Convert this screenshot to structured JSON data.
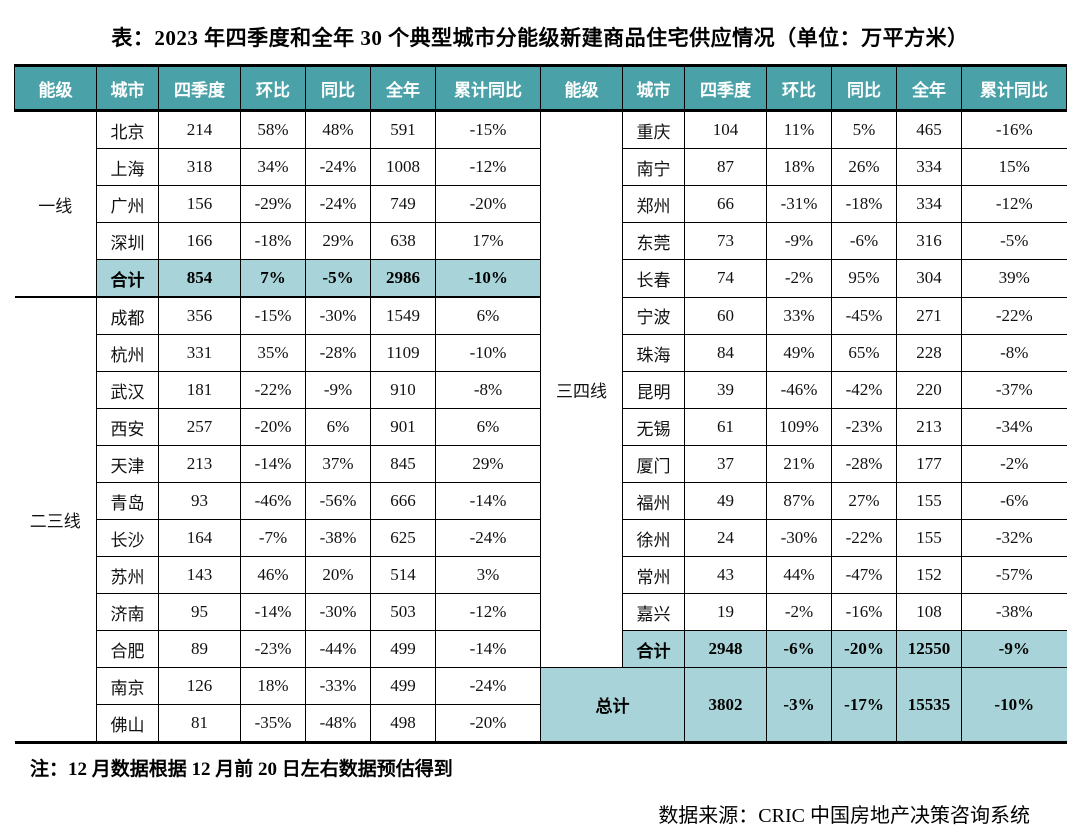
{
  "title": "表：2023 年四季度和全年 30 个典型城市分能级新建商品住宅供应情况（单位：万平方米）",
  "note": "注：12 月数据根据 12 月前 20 日左右数据预估得到",
  "source": "数据来源：CRIC 中国房地产决策咨询系统",
  "colors": {
    "header_bg": "#4aa2a8",
    "header_text": "#ffffff",
    "highlight_bg": "#a8d3d8",
    "border": "#000000"
  },
  "chart_data": {
    "type": "table",
    "title": "表：2023 年四季度和全年 30 个典型城市分能级新建商品住宅供应情况（单位：万平方米）",
    "columns": [
      "能级",
      "城市",
      "四季度",
      "环比",
      "同比",
      "全年",
      "累计同比"
    ],
    "left_groups": [
      {
        "tier": "一线",
        "rows": [
          {
            "cells": [
              "北京",
              "214",
              "58%",
              "48%",
              "591",
              "-15%"
            ],
            "highlight": false
          },
          {
            "cells": [
              "上海",
              "318",
              "34%",
              "-24%",
              "1008",
              "-12%"
            ],
            "highlight": false
          },
          {
            "cells": [
              "广州",
              "156",
              "-29%",
              "-24%",
              "749",
              "-20%"
            ],
            "highlight": false
          },
          {
            "cells": [
              "深圳",
              "166",
              "-18%",
              "29%",
              "638",
              "17%"
            ],
            "highlight": false
          },
          {
            "cells": [
              "合计",
              "854",
              "7%",
              "-5%",
              "2986",
              "-10%"
            ],
            "highlight": true
          }
        ]
      },
      {
        "tier": "二三线",
        "rows": [
          {
            "cells": [
              "成都",
              "356",
              "-15%",
              "-30%",
              "1549",
              "6%"
            ],
            "highlight": false
          },
          {
            "cells": [
              "杭州",
              "331",
              "35%",
              "-28%",
              "1109",
              "-10%"
            ],
            "highlight": false
          },
          {
            "cells": [
              "武汉",
              "181",
              "-22%",
              "-9%",
              "910",
              "-8%"
            ],
            "highlight": false
          },
          {
            "cells": [
              "西安",
              "257",
              "-20%",
              "6%",
              "901",
              "6%"
            ],
            "highlight": false
          },
          {
            "cells": [
              "天津",
              "213",
              "-14%",
              "37%",
              "845",
              "29%"
            ],
            "highlight": false
          },
          {
            "cells": [
              "青岛",
              "93",
              "-46%",
              "-56%",
              "666",
              "-14%"
            ],
            "highlight": false
          },
          {
            "cells": [
              "长沙",
              "164",
              "-7%",
              "-38%",
              "625",
              "-24%"
            ],
            "highlight": false
          },
          {
            "cells": [
              "苏州",
              "143",
              "46%",
              "20%",
              "514",
              "3%"
            ],
            "highlight": false
          },
          {
            "cells": [
              "济南",
              "95",
              "-14%",
              "-30%",
              "503",
              "-12%"
            ],
            "highlight": false
          },
          {
            "cells": [
              "合肥",
              "89",
              "-23%",
              "-44%",
              "499",
              "-14%"
            ],
            "highlight": false
          },
          {
            "cells": [
              "南京",
              "126",
              "18%",
              "-33%",
              "499",
              "-24%"
            ],
            "highlight": false
          },
          {
            "cells": [
              "佛山",
              "81",
              "-35%",
              "-48%",
              "498",
              "-20%"
            ],
            "highlight": false
          }
        ]
      }
    ],
    "right_groups": [
      {
        "tier": "三四线",
        "rows": [
          {
            "cells": [
              "重庆",
              "104",
              "11%",
              "5%",
              "465",
              "-16%"
            ],
            "highlight": false
          },
          {
            "cells": [
              "南宁",
              "87",
              "18%",
              "26%",
              "334",
              "15%"
            ],
            "highlight": false
          },
          {
            "cells": [
              "郑州",
              "66",
              "-31%",
              "-18%",
              "334",
              "-12%"
            ],
            "highlight": false
          },
          {
            "cells": [
              "东莞",
              "73",
              "-9%",
              "-6%",
              "316",
              "-5%"
            ],
            "highlight": false
          },
          {
            "cells": [
              "长春",
              "74",
              "-2%",
              "95%",
              "304",
              "39%"
            ],
            "highlight": false
          },
          {
            "cells": [
              "宁波",
              "60",
              "33%",
              "-45%",
              "271",
              "-22%"
            ],
            "highlight": false
          },
          {
            "cells": [
              "珠海",
              "84",
              "49%",
              "65%",
              "228",
              "-8%"
            ],
            "highlight": false
          },
          {
            "cells": [
              "昆明",
              "39",
              "-46%",
              "-42%",
              "220",
              "-37%"
            ],
            "highlight": false
          },
          {
            "cells": [
              "无锡",
              "61",
              "109%",
              "-23%",
              "213",
              "-34%"
            ],
            "highlight": false
          },
          {
            "cells": [
              "厦门",
              "37",
              "21%",
              "-28%",
              "177",
              "-2%"
            ],
            "highlight": false
          },
          {
            "cells": [
              "福州",
              "49",
              "87%",
              "27%",
              "155",
              "-6%"
            ],
            "highlight": false
          },
          {
            "cells": [
              "徐州",
              "24",
              "-30%",
              "-22%",
              "155",
              "-32%"
            ],
            "highlight": false
          },
          {
            "cells": [
              "常州",
              "43",
              "44%",
              "-47%",
              "152",
              "-57%"
            ],
            "highlight": false
          },
          {
            "cells": [
              "嘉兴",
              "19",
              "-2%",
              "-16%",
              "108",
              "-38%"
            ],
            "highlight": false
          },
          {
            "cells": [
              "合计",
              "2948",
              "-6%",
              "-20%",
              "12550",
              "-9%"
            ],
            "highlight": true
          }
        ]
      }
    ],
    "total_row": {
      "label": "总计",
      "values": [
        "3802",
        "-3%",
        "-17%",
        "15535",
        "-10%"
      ]
    }
  }
}
